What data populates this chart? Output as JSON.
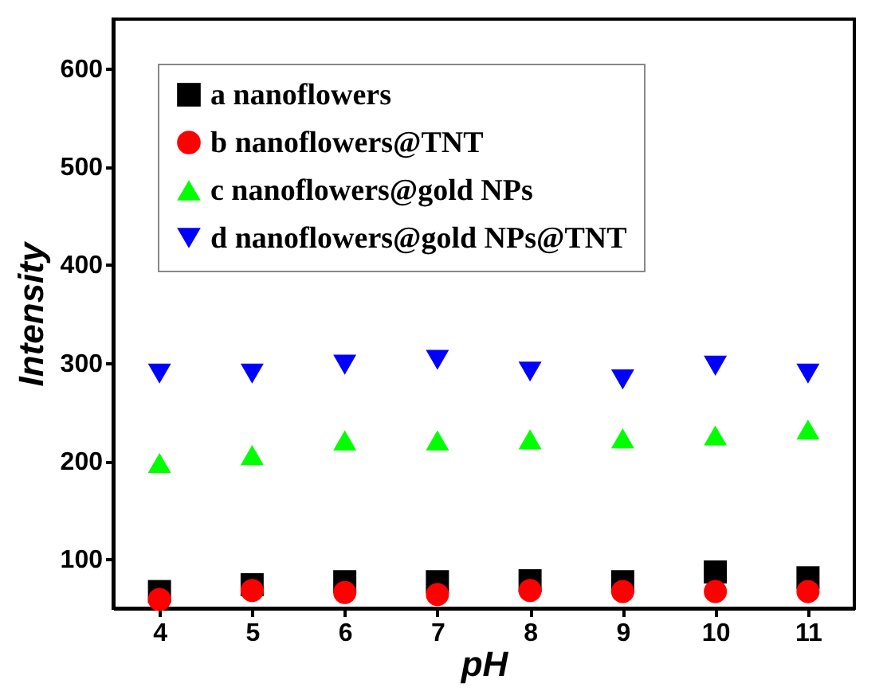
{
  "chart_data": {
    "type": "scatter",
    "xlabel": "pH",
    "ylabel": "Intensity",
    "x": [
      4,
      5,
      6,
      7,
      8,
      9,
      10,
      11
    ],
    "xlim": [
      3.5,
      11.5
    ],
    "xticks": [
      4,
      5,
      6,
      7,
      8,
      9,
      10,
      11
    ],
    "ylim": [
      50,
      650
    ],
    "yticks": [
      100,
      200,
      300,
      400,
      500,
      600
    ],
    "legend": "top left",
    "grid": false,
    "series": [
      {
        "name": "a nanoflowers",
        "color": "#000000",
        "marker": "square",
        "values": [
          67,
          74,
          77,
          77,
          78,
          77,
          87,
          81
        ]
      },
      {
        "name": "b nanoflowers@TNT",
        "color": "#ff0000",
        "marker": "circle",
        "values": [
          59,
          68,
          66,
          64,
          68,
          67,
          67,
          67
        ]
      },
      {
        "name": "c nanoflowers@gold NPs",
        "color": "#00ff00",
        "marker": "triangle",
        "values": [
          198,
          206,
          221,
          221,
          222,
          223,
          226,
          232
        ]
      },
      {
        "name": "d nanoflowers@gold NPs@TNT",
        "color": "#0000ff",
        "marker": "triangle-down",
        "values": [
          289,
          289,
          298,
          303,
          291,
          283,
          297,
          289
        ]
      }
    ]
  }
}
